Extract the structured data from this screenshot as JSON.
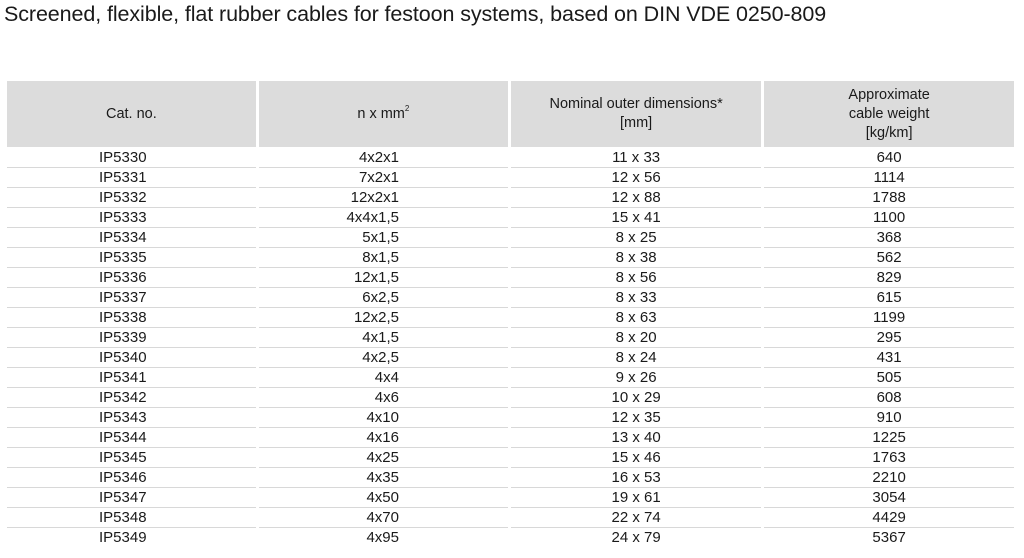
{
  "title": "Screened, flexible, flat rubber cables for festoon systems, based on DIN VDE 0250-809",
  "table": {
    "headers": {
      "cat_no": "Cat. no.",
      "nxmm": "n x mm",
      "nxmm_sup": "2",
      "dims_line1": "Nominal outer dimensions*",
      "dims_line2": "[mm]",
      "weight_line1": "Approximate",
      "weight_line2": "cable weight",
      "weight_line3": "[kg/km]"
    },
    "rows": [
      {
        "cat": "IP5330",
        "nxmm": "4x2x1",
        "dims": "11 x 33",
        "weight": "640"
      },
      {
        "cat": "IP5331",
        "nxmm": "7x2x1",
        "dims": "12 x 56",
        "weight": "1114"
      },
      {
        "cat": "IP5332",
        "nxmm": "12x2x1",
        "dims": "12 x 88",
        "weight": "1788"
      },
      {
        "cat": "IP5333",
        "nxmm": "4x4x1,5",
        "dims": "15 x 41",
        "weight": "1100"
      },
      {
        "cat": "IP5334",
        "nxmm": "5x1,5",
        "dims": "8 x 25",
        "weight": "368"
      },
      {
        "cat": "IP5335",
        "nxmm": "8x1,5",
        "dims": "8 x 38",
        "weight": "562"
      },
      {
        "cat": "IP5336",
        "nxmm": "12x1,5",
        "dims": "8 x 56",
        "weight": "829"
      },
      {
        "cat": "IP5337",
        "nxmm": "6x2,5",
        "dims": "8 x 33",
        "weight": "615"
      },
      {
        "cat": "IP5338",
        "nxmm": "12x2,5",
        "dims": "8 x 63",
        "weight": "1199"
      },
      {
        "cat": "IP5339",
        "nxmm": "4x1,5",
        "dims": "8 x 20",
        "weight": "295"
      },
      {
        "cat": "IP5340",
        "nxmm": "4x2,5",
        "dims": "8 x 24",
        "weight": "431"
      },
      {
        "cat": "IP5341",
        "nxmm": "4x4",
        "dims": "9 x 26",
        "weight": "505"
      },
      {
        "cat": "IP5342",
        "nxmm": "4x6",
        "dims": "10 x 29",
        "weight": "608"
      },
      {
        "cat": "IP5343",
        "nxmm": "4x10",
        "dims": "12 x 35",
        "weight": "910"
      },
      {
        "cat": "IP5344",
        "nxmm": "4x16",
        "dims": "13 x 40",
        "weight": "1225"
      },
      {
        "cat": "IP5345",
        "nxmm": "4x25",
        "dims": "15 x 46",
        "weight": "1763"
      },
      {
        "cat": "IP5346",
        "nxmm": "4x35",
        "dims": "16 x 53",
        "weight": "2210"
      },
      {
        "cat": "IP5347",
        "nxmm": "4x50",
        "dims": "19 x 61",
        "weight": "3054"
      },
      {
        "cat": "IP5348",
        "nxmm": "4x70",
        "dims": "22 x 74",
        "weight": "4429"
      },
      {
        "cat": "IP5349",
        "nxmm": "4x95",
        "dims": "24 x 79",
        "weight": "5367"
      }
    ]
  }
}
